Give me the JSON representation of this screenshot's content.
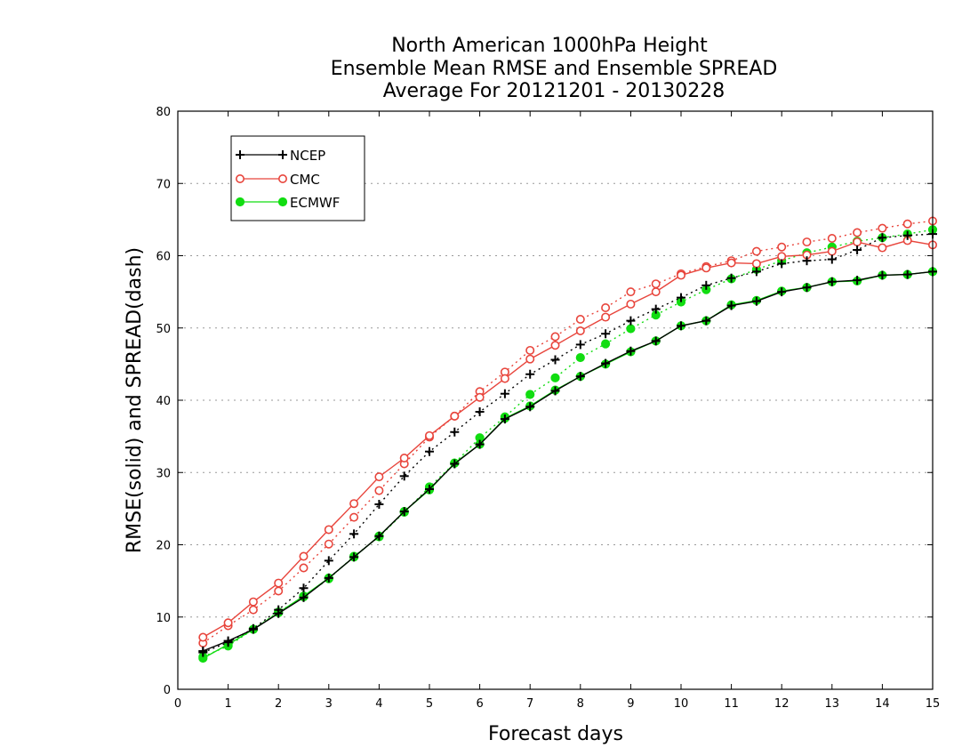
{
  "chart_data": {
    "type": "line",
    "title": [
      "North American 1000hPa Height",
      "Ensemble Mean RMSE and Ensemble SPREAD",
      "Average For 20121201 - 20130228"
    ],
    "xlabel": "Forecast days",
    "ylabel": "RMSE(solid) and SPREAD(dash)",
    "xlim": [
      0,
      15
    ],
    "ylim": [
      0,
      80
    ],
    "xticks": [
      "0",
      "1",
      "2",
      "3",
      "4",
      "5",
      "6",
      "7",
      "8",
      "9",
      "10",
      "11",
      "12",
      "13",
      "14",
      "15"
    ],
    "yticks": [
      "0",
      "10",
      "20",
      "30",
      "40",
      "50",
      "60",
      "70",
      "80"
    ],
    "grid": "horizontal dotted",
    "legend_position": "top-left",
    "x": [
      0.5,
      1,
      1.5,
      2,
      2.5,
      3,
      3.5,
      4,
      4.5,
      5,
      5.5,
      6,
      6.5,
      7,
      7.5,
      8,
      8.5,
      9,
      9.5,
      10,
      10.5,
      11,
      11.5,
      12,
      12.5,
      13,
      13.5,
      14,
      14.5,
      15
    ],
    "series": [
      {
        "name": "NCEP",
        "color": "#000000",
        "marker": "plus",
        "rmse": [
          5.3,
          6.7,
          8.3,
          10.5,
          12.7,
          15.4,
          18.3,
          21.2,
          24.6,
          27.7,
          31.2,
          33.9,
          37.4,
          39.1,
          41.3,
          43.3,
          45.1,
          46.8,
          48.2,
          50.3,
          51.0,
          53.1,
          53.7,
          55.0,
          55.6,
          56.4,
          56.6,
          57.3,
          57.4,
          57.8
        ],
        "spread": [
          5.1,
          6.5,
          8.4,
          11.0,
          14.0,
          17.8,
          21.5,
          25.6,
          29.5,
          32.9,
          35.6,
          38.4,
          40.9,
          43.6,
          45.6,
          47.7,
          49.2,
          51.0,
          52.6,
          54.2,
          55.9,
          56.9,
          57.8,
          58.9,
          59.3,
          59.5,
          60.8,
          62.5,
          62.8,
          63.0
        ]
      },
      {
        "name": "CMC",
        "color": "#e8453c",
        "marker": "open-circle",
        "rmse": [
          7.2,
          9.2,
          12.1,
          14.7,
          18.4,
          22.1,
          25.7,
          29.4,
          32.0,
          35.1,
          37.8,
          40.4,
          43.0,
          45.7,
          47.6,
          49.6,
          51.5,
          53.3,
          55.0,
          57.3,
          58.3,
          59.0,
          58.9,
          59.9,
          60.1,
          60.6,
          61.9,
          61.1,
          62.1,
          61.5
        ],
        "spread": [
          6.4,
          8.8,
          11.0,
          13.6,
          16.8,
          20.1,
          23.8,
          27.5,
          31.2,
          34.9,
          37.8,
          41.2,
          43.9,
          46.9,
          48.8,
          51.2,
          52.8,
          55.0,
          56.1,
          57.5,
          58.5,
          59.3,
          60.6,
          61.2,
          61.9,
          62.4,
          63.2,
          63.8,
          64.4,
          64.8
        ]
      },
      {
        "name": "ECMWF",
        "color": "#11dd11",
        "marker": "filled-circle",
        "rmse": [
          4.3,
          6.2,
          8.3,
          10.6,
          12.9,
          15.4,
          18.3,
          21.2,
          24.6,
          27.6,
          31.3,
          33.9,
          37.5,
          39.2,
          41.4,
          43.3,
          45.0,
          46.7,
          48.2,
          50.3,
          51.0,
          53.2,
          53.8,
          55.1,
          55.6,
          56.4,
          56.5,
          57.3,
          57.4,
          57.8
        ],
        "spread": [
          4.5,
          6.0,
          8.3,
          10.7,
          12.8,
          15.3,
          18.4,
          21.1,
          24.5,
          28.0,
          31.3,
          34.8,
          37.7,
          40.8,
          43.1,
          45.9,
          47.8,
          49.9,
          51.8,
          53.6,
          55.3,
          56.8,
          58.1,
          59.3,
          60.4,
          61.2,
          62.0,
          62.5,
          63.0,
          63.6
        ]
      }
    ]
  }
}
